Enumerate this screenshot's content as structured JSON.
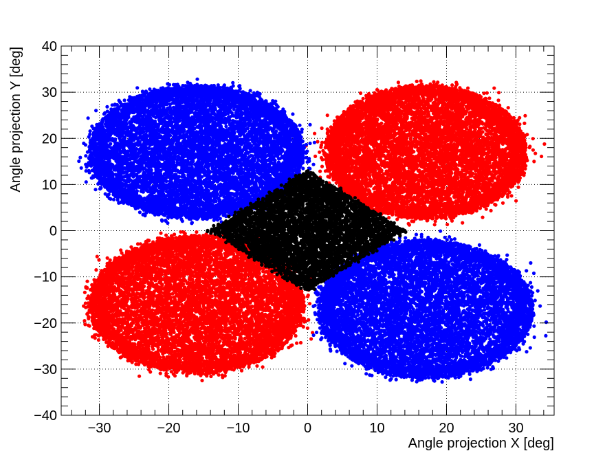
{
  "chart_data": {
    "type": "scatter",
    "title": "",
    "xlabel": "Angle projection X [deg]",
    "ylabel": "Angle projection Y [deg]",
    "xlim": [
      -35.5,
      35.5
    ],
    "ylim": [
      -40,
      40
    ],
    "xticks": [
      -30,
      -20,
      -10,
      0,
      10,
      20,
      30
    ],
    "yticks": [
      -40,
      -30,
      -20,
      -10,
      0,
      10,
      20,
      30,
      40
    ],
    "xtick_labels": [
      "−30",
      "−20",
      "−10",
      "0",
      "10",
      "20",
      "30"
    ],
    "ytick_labels": [
      "−40",
      "−30",
      "−20",
      "−10",
      "0",
      "10",
      "20",
      "30",
      "40"
    ],
    "grid": true,
    "grid_style": "dotted",
    "legend": "none",
    "series": [
      {
        "color": "#ff0000",
        "shape": "ellipse",
        "center": [
          17,
          17
        ],
        "half_width": [
          14.5,
          14.5
        ],
        "points": 9000
      },
      {
        "color": "#0000ff",
        "shape": "ellipse",
        "center": [
          -16,
          17
        ],
        "half_width": [
          15.5,
          14.5
        ],
        "points": 9000
      },
      {
        "color": "#ff0000",
        "shape": "ellipse",
        "center": [
          -16,
          -16
        ],
        "half_width": [
          15.5,
          15
        ],
        "points": 9000
      },
      {
        "color": "#0000ff",
        "shape": "ellipse",
        "center": [
          17,
          -17
        ],
        "half_width": [
          15.5,
          15
        ],
        "points": 9000
      },
      {
        "color": "#000000",
        "shape": "diamond",
        "center": [
          0,
          0
        ],
        "half_width": [
          14,
          13
        ],
        "points": 5000
      }
    ]
  }
}
